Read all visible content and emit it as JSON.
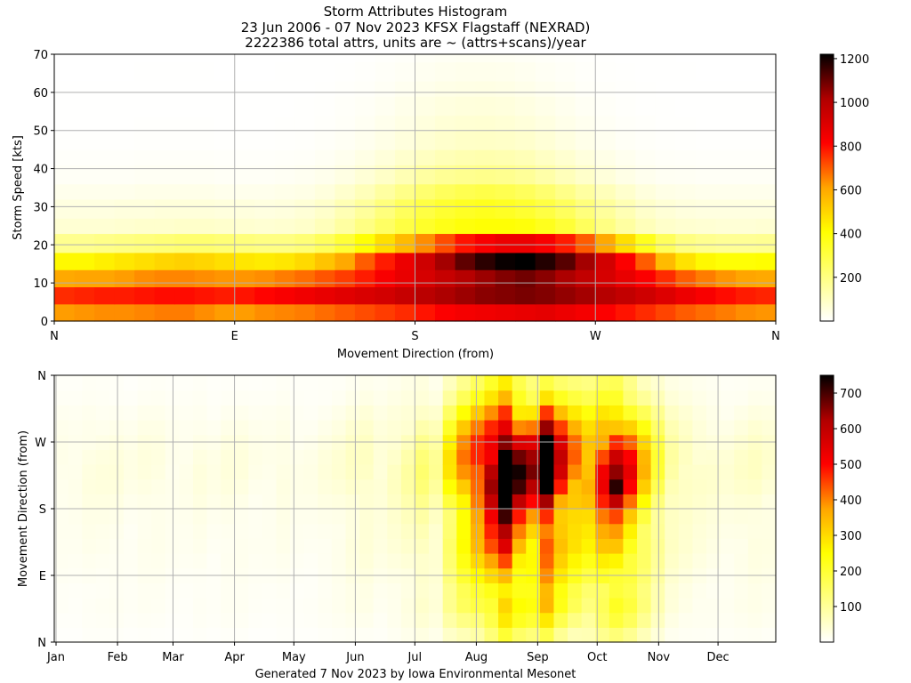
{
  "title_lines": [
    "Storm Attributes Histogram",
    "23 Jun 2006 - 07 Nov 2023 KFSX Flagstaff (NEXRAD)",
    "2222386 total attrs, units are ~ (attrs+scans)/year"
  ],
  "footer": "Generated 7 Nov 2023 by Iowa Environmental Mesonet",
  "colormap": [
    "#ffffff",
    "#ffff80",
    "#ffff00",
    "#ffa500",
    "#ff0000",
    "#b00000",
    "#000000"
  ],
  "chart_data": [
    {
      "type": "heatmap",
      "name": "speed-direction",
      "xlabel": "Movement Direction (from)",
      "ylabel": "Storm Speed [kts]",
      "xlim": [
        0,
        360
      ],
      "ylim": [
        0,
        70
      ],
      "x_ticks": [
        {
          "value": 0,
          "label": "N"
        },
        {
          "value": 90,
          "label": "E"
        },
        {
          "value": 180,
          "label": "S"
        },
        {
          "value": 270,
          "label": "W"
        },
        {
          "value": 360,
          "label": "N"
        }
      ],
      "y_ticks": [
        0,
        10,
        20,
        30,
        40,
        50,
        60,
        70
      ],
      "x_bin_width": 10,
      "y_bin_edges": [
        0,
        4.5,
        9,
        13.5,
        18,
        23,
        27,
        32,
        36,
        41,
        45,
        50,
        54,
        59,
        63,
        68,
        70
      ],
      "colorbar": {
        "min": 0,
        "max": 1220,
        "ticks": [
          200,
          400,
          600,
          800,
          1000,
          1200
        ]
      },
      "grid": true,
      "z": [
        [
          620,
          630,
          640,
          640,
          650,
          660,
          660,
          640,
          620,
          620,
          640,
          650,
          660,
          680,
          700,
          720,
          740,
          760,
          790,
          820,
          840,
          850,
          860,
          870,
          880,
          860,
          840,
          820,
          790,
          760,
          730,
          700,
          680,
          660,
          640,
          630
        ],
        [
          760,
          770,
          780,
          780,
          790,
          800,
          800,
          790,
          780,
          790,
          810,
          830,
          850,
          870,
          890,
          910,
          930,
          960,
          990,
          1020,
          1040,
          1060,
          1070,
          1080,
          1070,
          1050,
          1030,
          1000,
          970,
          940,
          900,
          860,
          830,
          800,
          780,
          770
        ],
        [
          600,
          610,
          610,
          620,
          640,
          650,
          650,
          640,
          630,
          630,
          640,
          660,
          680,
          710,
          740,
          780,
          830,
          870,
          920,
          960,
          1000,
          1040,
          1070,
          1090,
          1060,
          1020,
          970,
          920,
          870,
          820,
          760,
          700,
          660,
          630,
          610,
          600
        ],
        [
          420,
          420,
          440,
          460,
          480,
          500,
          510,
          500,
          480,
          460,
          450,
          460,
          490,
          540,
          600,
          700,
          780,
          860,
          940,
          1030,
          1110,
          1170,
          1210,
          1220,
          1180,
          1120,
          1030,
          930,
          820,
          700,
          560,
          470,
          420,
          400,
          400,
          410
        ],
        [
          180,
          180,
          190,
          200,
          210,
          220,
          230,
          230,
          220,
          210,
          200,
          200,
          220,
          260,
          320,
          400,
          480,
          560,
          640,
          720,
          790,
          830,
          860,
          860,
          830,
          780,
          700,
          600,
          480,
          360,
          260,
          200,
          180,
          170,
          170,
          175
        ],
        [
          70,
          70,
          70,
          75,
          80,
          80,
          85,
          85,
          80,
          75,
          70,
          75,
          85,
          110,
          150,
          200,
          250,
          300,
          340,
          370,
          390,
          400,
          400,
          390,
          360,
          320,
          260,
          200,
          150,
          110,
          85,
          75,
          70,
          65,
          65,
          70
        ],
        [
          50,
          50,
          50,
          55,
          55,
          60,
          60,
          60,
          55,
          55,
          50,
          55,
          65,
          85,
          120,
          160,
          210,
          260,
          300,
          330,
          350,
          360,
          350,
          330,
          300,
          260,
          210,
          160,
          120,
          85,
          65,
          55,
          50,
          50,
          50,
          50
        ],
        [
          30,
          30,
          30,
          30,
          35,
          35,
          35,
          35,
          30,
          30,
          30,
          35,
          40,
          55,
          80,
          110,
          150,
          190,
          230,
          260,
          280,
          290,
          280,
          260,
          230,
          190,
          150,
          110,
          80,
          55,
          40,
          35,
          30,
          30,
          30,
          30
        ],
        [
          15,
          15,
          15,
          15,
          18,
          18,
          18,
          18,
          15,
          15,
          15,
          18,
          22,
          30,
          45,
          65,
          90,
          120,
          150,
          170,
          180,
          185,
          180,
          165,
          140,
          110,
          85,
          60,
          40,
          28,
          20,
          17,
          15,
          15,
          15,
          15
        ],
        [
          8,
          8,
          8,
          8,
          10,
          10,
          10,
          10,
          8,
          8,
          8,
          10,
          12,
          18,
          28,
          42,
          60,
          80,
          100,
          115,
          125,
          130,
          125,
          115,
          95,
          75,
          55,
          38,
          25,
          16,
          11,
          9,
          8,
          8,
          8,
          8
        ],
        [
          4,
          4,
          4,
          4,
          5,
          5,
          5,
          5,
          4,
          4,
          4,
          5,
          7,
          11,
          18,
          28,
          40,
          55,
          70,
          82,
          90,
          92,
          88,
          80,
          65,
          50,
          36,
          24,
          15,
          9,
          6,
          5,
          4,
          4,
          4,
          4
        ],
        [
          2,
          2,
          2,
          2,
          3,
          3,
          3,
          3,
          2,
          2,
          2,
          3,
          4,
          7,
          12,
          20,
          30,
          42,
          55,
          65,
          70,
          72,
          68,
          60,
          48,
          36,
          25,
          16,
          10,
          6,
          4,
          3,
          2,
          2,
          2,
          2
        ],
        [
          1,
          1,
          1,
          1,
          2,
          2,
          2,
          2,
          1,
          1,
          1,
          2,
          3,
          5,
          9,
          15,
          23,
          33,
          44,
          52,
          56,
          58,
          54,
          47,
          37,
          27,
          18,
          11,
          7,
          4,
          3,
          2,
          1,
          1,
          1,
          1
        ],
        [
          1,
          1,
          1,
          1,
          1,
          1,
          1,
          1,
          1,
          1,
          1,
          1,
          2,
          3,
          6,
          10,
          16,
          24,
          32,
          38,
          42,
          43,
          40,
          34,
          26,
          19,
          12,
          8,
          5,
          3,
          2,
          1,
          1,
          1,
          1,
          1
        ],
        [
          0,
          0,
          0,
          0,
          1,
          1,
          1,
          1,
          0,
          0,
          0,
          1,
          1,
          2,
          4,
          7,
          11,
          16,
          22,
          27,
          30,
          31,
          29,
          24,
          18,
          13,
          8,
          5,
          3,
          2,
          1,
          1,
          0,
          0,
          0,
          0
        ],
        [
          0,
          0,
          0,
          0,
          0,
          0,
          0,
          0,
          0,
          0,
          0,
          0,
          1,
          1,
          2,
          4,
          7,
          10,
          14,
          17,
          19,
          20,
          18,
          15,
          11,
          8,
          5,
          3,
          2,
          1,
          1,
          0,
          0,
          0,
          0,
          0
        ]
      ]
    },
    {
      "type": "heatmap",
      "name": "direction-by-week",
      "xlabel": "",
      "ylabel": "Movement Direction (from)",
      "x_ticks": [
        "Jan",
        "Feb",
        "Mar",
        "Apr",
        "May",
        "Jun",
        "Jul",
        "Aug",
        "Sep",
        "Oct",
        "Nov",
        "Dec"
      ],
      "y_ticks": [
        {
          "value": 0,
          "label": "N"
        },
        {
          "value": 90,
          "label": "E"
        },
        {
          "value": 180,
          "label": "S"
        },
        {
          "value": 270,
          "label": "W"
        },
        {
          "value": 360,
          "label": "N"
        }
      ],
      "weeks": 52,
      "dir_bin_width": 20,
      "colorbar": {
        "min": 0,
        "max": 750,
        "ticks": [
          100,
          200,
          300,
          400,
          500,
          600,
          700
        ]
      },
      "grid": true,
      "week_profile": [
        15,
        15,
        20,
        20,
        20,
        15,
        20,
        20,
        15,
        15,
        20,
        15,
        20,
        20,
        15,
        15,
        20,
        15,
        15,
        20,
        25,
        35,
        40,
        30,
        40,
        55,
        80,
        60,
        170,
        260,
        340,
        440,
        590,
        420,
        370,
        530,
        360,
        290,
        260,
        340,
        380,
        300,
        200,
        120,
        60,
        45,
        35,
        30,
        25,
        30,
        35,
        30
      ],
      "dir_profile": [
        0.3,
        0.45,
        0.55,
        0.55,
        0.65,
        0.75,
        0.85,
        0.9,
        1.0,
        1.2,
        1.4,
        1.5,
        1.45,
        1.3,
        1.05,
        0.8,
        0.55,
        0.4
      ],
      "highlights": [
        {
          "week": 40,
          "dir_bin": 10,
          "value": 720
        },
        {
          "week": 40,
          "dir_bin": 9,
          "value": 600
        }
      ]
    }
  ]
}
